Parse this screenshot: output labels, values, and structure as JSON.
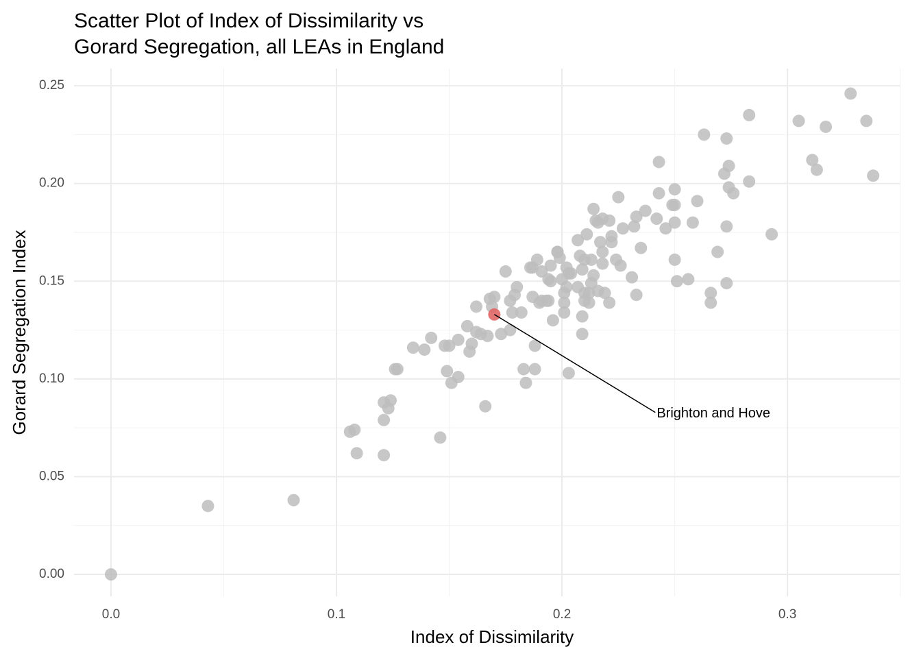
{
  "chart_data": {
    "type": "scatter",
    "title": [
      "Scatter Plot of Index of Dissimilarity vs",
      "Gorard Segregation, all LEAs in England"
    ],
    "x_label": "Index of Dissimilarity",
    "y_label": "Gorard Segregation Index",
    "xlim": [
      -0.0164,
      0.3498
    ],
    "ylim": [
      -0.0112,
      0.2588
    ],
    "xticks": [
      {
        "value": 0,
        "label": "0.0"
      },
      0.1,
      0.2,
      0.3
    ],
    "yticks": [
      {
        "value": 0,
        "label": "0.00"
      },
      0.05,
      {
        "value": 0.1,
        "label": "0.10"
      },
      0.15,
      {
        "value": 0.2,
        "label": "0.20"
      },
      0.25
    ],
    "x_minor_ticks": [
      0.05,
      0.15,
      0.25,
      0.35
    ],
    "y_minor_ticks": [
      0.025,
      0.075,
      0.125,
      0.175,
      0.225
    ],
    "grid": true,
    "color": "#bdbdbd",
    "x": [
      0,
      0.043,
      0.081,
      0.106,
      0.108,
      0.109,
      0.121,
      0.123,
      0.124,
      0.121,
      0.121,
      0.126,
      0.127,
      0.134,
      0.139,
      0.142,
      0.146,
      0.148,
      0.15,
      0.149,
      0.151,
      0.154,
      0.154,
      0.158,
      0.159,
      0.16,
      0.162,
      0.162,
      0.164,
      0.166,
      0.167,
      0.168,
      0.169,
      0.17,
      0.173,
      0.175,
      0.177,
      0.177,
      0.178,
      0.179,
      0.18,
      0.182,
      0.183,
      0.184,
      0.186,
      0.187,
      0.187,
      0.188,
      0.188,
      0.189,
      0.19,
      0.191,
      0.191,
      0.193,
      0.194,
      0.194,
      0.195,
      0.195,
      0.196,
      0.198,
      0.198,
      0.199,
      0.2,
      0.201,
      0.201,
      0.201,
      0.202,
      0.202,
      0.203,
      0.204,
      0.203,
      0.207,
      0.207,
      0.208,
      0.209,
      0.209,
      0.209,
      0.21,
      0.21,
      0.21,
      0.211,
      0.212,
      0.212,
      0.213,
      0.213,
      0.214,
      0.214,
      0.215,
      0.216,
      0.216,
      0.217,
      0.218,
      0.218,
      0.218,
      0.219,
      0.221,
      0.221,
      0.222,
      0.222,
      0.224,
      0.225,
      0.226,
      0.227,
      0.231,
      0.232,
      0.233,
      0.233,
      0.235,
      0.237,
      0.242,
      0.243,
      0.243,
      0.246,
      0.249,
      0.25,
      0.25,
      0.25,
      0.25,
      0.251,
      0.256,
      0.258,
      0.26,
      0.263,
      0.266,
      0.266,
      0.269,
      0.272,
      0.273,
      0.273,
      0.273,
      0.274,
      0.274,
      0.276,
      0.283,
      0.283,
      0.293,
      0.305,
      0.311,
      0.313,
      0.317,
      0.328,
      0.335,
      0.338
    ],
    "y": [
      0,
      0.035,
      0.038,
      0.073,
      0.074,
      0.062,
      0.088,
      0.085,
      0.089,
      0.079,
      0.061,
      0.105,
      0.105,
      0.116,
      0.115,
      0.121,
      0.07,
      0.117,
      0.117,
      0.104,
      0.098,
      0.101,
      0.12,
      0.127,
      0.114,
      0.118,
      0.137,
      0.124,
      0.123,
      0.086,
      0.122,
      0.141,
      0.137,
      0.142,
      0.123,
      0.155,
      0.14,
      0.125,
      0.134,
      0.143,
      0.147,
      0.134,
      0.105,
      0.098,
      0.157,
      0.157,
      0.142,
      0.105,
      0.117,
      0.161,
      0.139,
      0.155,
      0.14,
      0.14,
      0.151,
      0.14,
      0.158,
      0.15,
      0.13,
      0.165,
      0.165,
      0.162,
      0.151,
      0.134,
      0.139,
      0.144,
      0.157,
      0.147,
      0.154,
      0.154,
      0.103,
      0.147,
      0.171,
      0.163,
      0.132,
      0.123,
      0.156,
      0.144,
      0.14,
      0.161,
      0.174,
      0.144,
      0.139,
      0.149,
      0.161,
      0.153,
      0.187,
      0.181,
      0.145,
      0.18,
      0.17,
      0.182,
      0.159,
      0.165,
      0.144,
      0.181,
      0.139,
      0.17,
      0.173,
      0.161,
      0.193,
      0.158,
      0.177,
      0.152,
      0.178,
      0.183,
      0.143,
      0.167,
      0.186,
      0.182,
      0.211,
      0.195,
      0.177,
      0.189,
      0.197,
      0.161,
      0.189,
      0.18,
      0.15,
      0.151,
      0.18,
      0.191,
      0.225,
      0.144,
      0.139,
      0.165,
      0.205,
      0.223,
      0.178,
      0.149,
      0.198,
      0.209,
      0.195,
      0.235,
      0.201,
      0.174,
      0.232,
      0.212,
      0.207,
      0.229,
      0.246,
      0.232,
      0.204
    ],
    "highlight": {
      "label": "Brighton and Hove",
      "x": 0.17,
      "y": 0.133,
      "color": "#e06666"
    }
  }
}
